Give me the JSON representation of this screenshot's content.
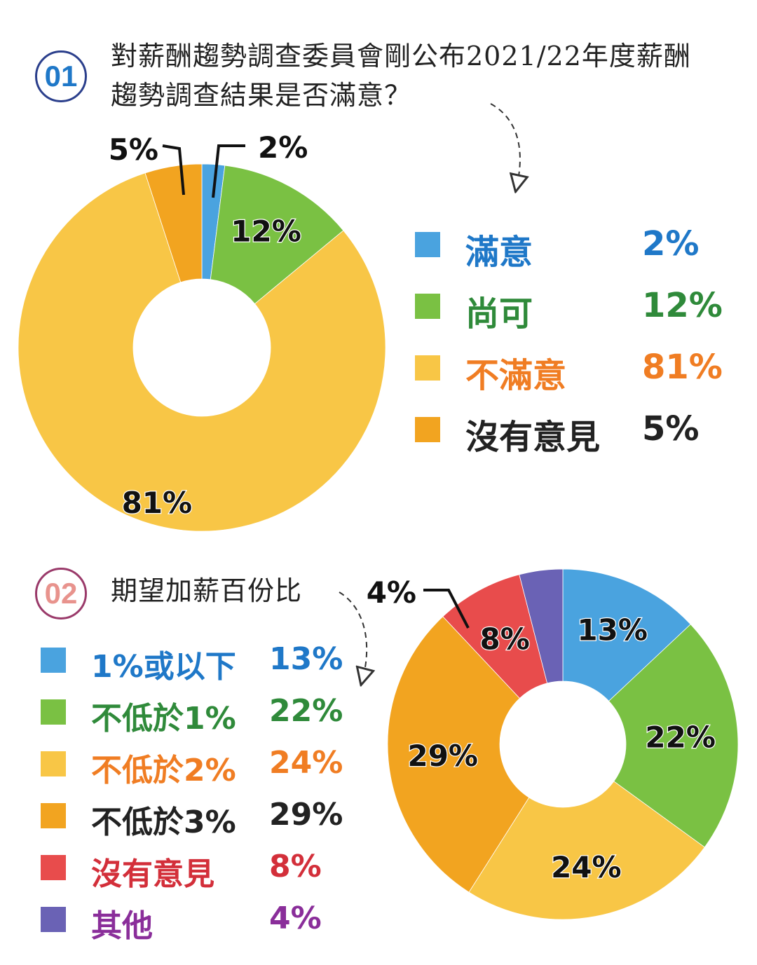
{
  "chart_data": [
    {
      "type": "pie",
      "number": "01",
      "title": "對薪酬趨勢調查委員會剛公布2021/22年度薪酬趨勢調查結果是否滿意？",
      "categories": [
        "滿意",
        "尚可",
        "不滿意",
        "沒有意見"
      ],
      "values": [
        2,
        12,
        81,
        5
      ],
      "labels": [
        "2%",
        "12%",
        "81%",
        "5%"
      ],
      "colors": [
        "#4aa3df",
        "#7ac143",
        "#f8c646",
        "#f2a420"
      ],
      "legend_text_colors": [
        "#1f78c8",
        "#2f8a3a",
        "#f07d23",
        "#222222"
      ],
      "legend_position": "right"
    },
    {
      "type": "pie",
      "number": "02",
      "title": "期望加薪百份比",
      "categories": [
        "1%或以下",
        "不低於1%",
        "不低於2%",
        "不低於3%",
        "沒有意見",
        "其他"
      ],
      "values": [
        13,
        22,
        24,
        29,
        8,
        4
      ],
      "labels": [
        "13%",
        "22%",
        "24%",
        "29%",
        "8%",
        "4%"
      ],
      "colors": [
        "#4aa3df",
        "#7ac143",
        "#f8c646",
        "#f2a420",
        "#e84c4c",
        "#6a62b5"
      ],
      "legend_text_colors": [
        "#1f78c8",
        "#2f8a3a",
        "#f07d23",
        "#222222",
        "#d32f3a",
        "#8a2e9a"
      ],
      "legend_position": "left"
    }
  ]
}
